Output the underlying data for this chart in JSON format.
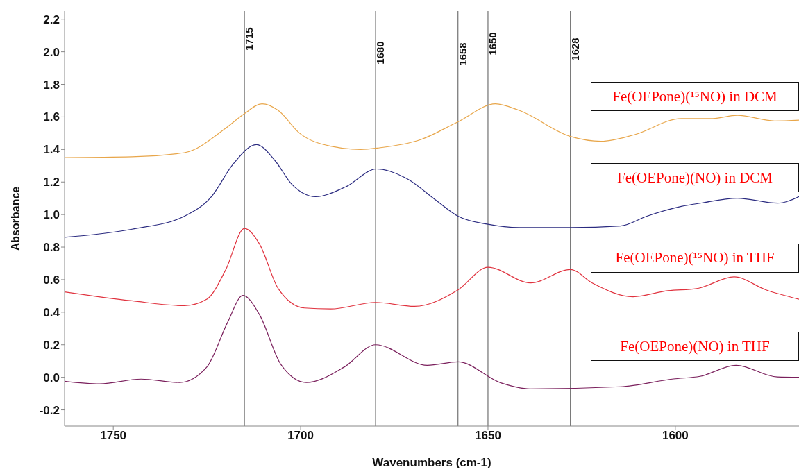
{
  "chart_data": {
    "type": "line",
    "xlabel": "Wavenumbers (cm-1)",
    "ylabel": "Absorbance",
    "xlim": [
      1763,
      1567
    ],
    "xticks": [
      1750,
      1700,
      1650,
      1600
    ],
    "ylim": [
      -0.3,
      2.25
    ],
    "yticks": [
      {
        "value": -0.2,
        "label": "-0.2"
      },
      {
        "value": 0,
        "label": "0.0"
      },
      0.2,
      0.4,
      0.6,
      0.8,
      {
        "value": 1,
        "label": "1.0"
      },
      1.2,
      1.4,
      1.6,
      1.8,
      {
        "value": 2,
        "label": "2.0"
      },
      2.2
    ],
    "grid": false,
    "legend": false,
    "marker": "none",
    "line_style": "solid",
    "ref_lines": [
      {
        "axis": "x",
        "value": 1715,
        "label": "1715",
        "color": "#555555"
      },
      {
        "axis": "x",
        "value": 1680,
        "label": "1680",
        "color": "#555555"
      },
      {
        "axis": "x",
        "value": 1658,
        "label": "1658",
        "color": "#555555"
      },
      {
        "axis": "x",
        "value": 1650,
        "label": "1650",
        "color": "#555555"
      },
      {
        "axis": "x",
        "value": 1628,
        "label": "1628",
        "color": "#555555"
      }
    ],
    "series": [
      {
        "name": "Fe(OEPone)(¹⁵NO) in DCM",
        "color": "#e8a64a",
        "x": [
          1763,
          1745,
          1731,
          1720,
          1715,
          1710.3,
          1706,
          1700.3,
          1692,
          1684,
          1679,
          1668,
          1658,
          1648,
          1641.7,
          1628,
          1619.8,
          1611,
          1598.4,
          1590,
          1583.5,
          1573.5,
          1567
        ],
        "values": [
          1.35,
          1.355,
          1.38,
          1.53,
          1.62,
          1.68,
          1.64,
          1.5,
          1.42,
          1.4,
          1.41,
          1.46,
          1.57,
          1.68,
          1.64,
          1.48,
          1.45,
          1.49,
          1.59,
          1.59,
          1.61,
          1.575,
          1.58
        ]
      },
      {
        "name": "Fe(OEPone)(NO) in DCM",
        "color": "#2b2b80",
        "x": [
          1763,
          1745,
          1731,
          1723.8,
          1718,
          1711.8,
          1706.8,
          1702.5,
          1696,
          1688,
          1679.7,
          1671.6,
          1664,
          1658,
          1650,
          1641.7,
          1628,
          1614.6,
          1607.6,
          1598.4,
          1593.3,
          1583.5,
          1572.7,
          1567
        ],
        "values": [
          0.86,
          0.91,
          0.99,
          1.11,
          1.31,
          1.43,
          1.33,
          1.19,
          1.11,
          1.17,
          1.28,
          1.22,
          1.09,
          0.99,
          0.94,
          0.92,
          0.92,
          0.93,
          0.99,
          1.05,
          1.07,
          1.1,
          1.07,
          1.11
        ]
      },
      {
        "name": "Fe(OEPone)(¹⁵NO) in THF",
        "color": "#e0323e",
        "x": [
          1763,
          1745,
          1731,
          1725,
          1720,
          1715,
          1711,
          1706,
          1699,
          1692,
          1680,
          1669.6,
          1658,
          1650,
          1638.6,
          1628,
          1622,
          1611.3,
          1602,
          1594.3,
          1584.3,
          1575.8,
          1567
        ],
        "values": [
          0.525,
          0.47,
          0.44,
          0.48,
          0.66,
          0.915,
          0.82,
          0.546,
          0.426,
          0.42,
          0.46,
          0.436,
          0.537,
          0.676,
          0.58,
          0.662,
          0.577,
          0.495,
          0.532,
          0.545,
          0.617,
          0.537,
          0.48
        ]
      },
      {
        "name": "Fe(OEPone)(NO) in THF",
        "color": "#7a1f5c",
        "x": [
          1763,
          1753.6,
          1742.6,
          1732.3,
          1725,
          1719.5,
          1715.4,
          1711,
          1705.3,
          1698.5,
          1688.3,
          1680,
          1666.2,
          1658,
          1646.6,
          1638.8,
          1614.7,
          1600.5,
          1593.4,
          1583.8,
          1572.8,
          1567
        ],
        "values": [
          -0.024,
          -0.04,
          -0.011,
          -0.032,
          0.064,
          0.337,
          0.503,
          0.386,
          0.08,
          -0.032,
          0.064,
          0.2,
          0.074,
          0.095,
          -0.034,
          -0.071,
          -0.058,
          -0.01,
          0.006,
          0.074,
          0.002,
          0.0
        ]
      }
    ]
  }
}
